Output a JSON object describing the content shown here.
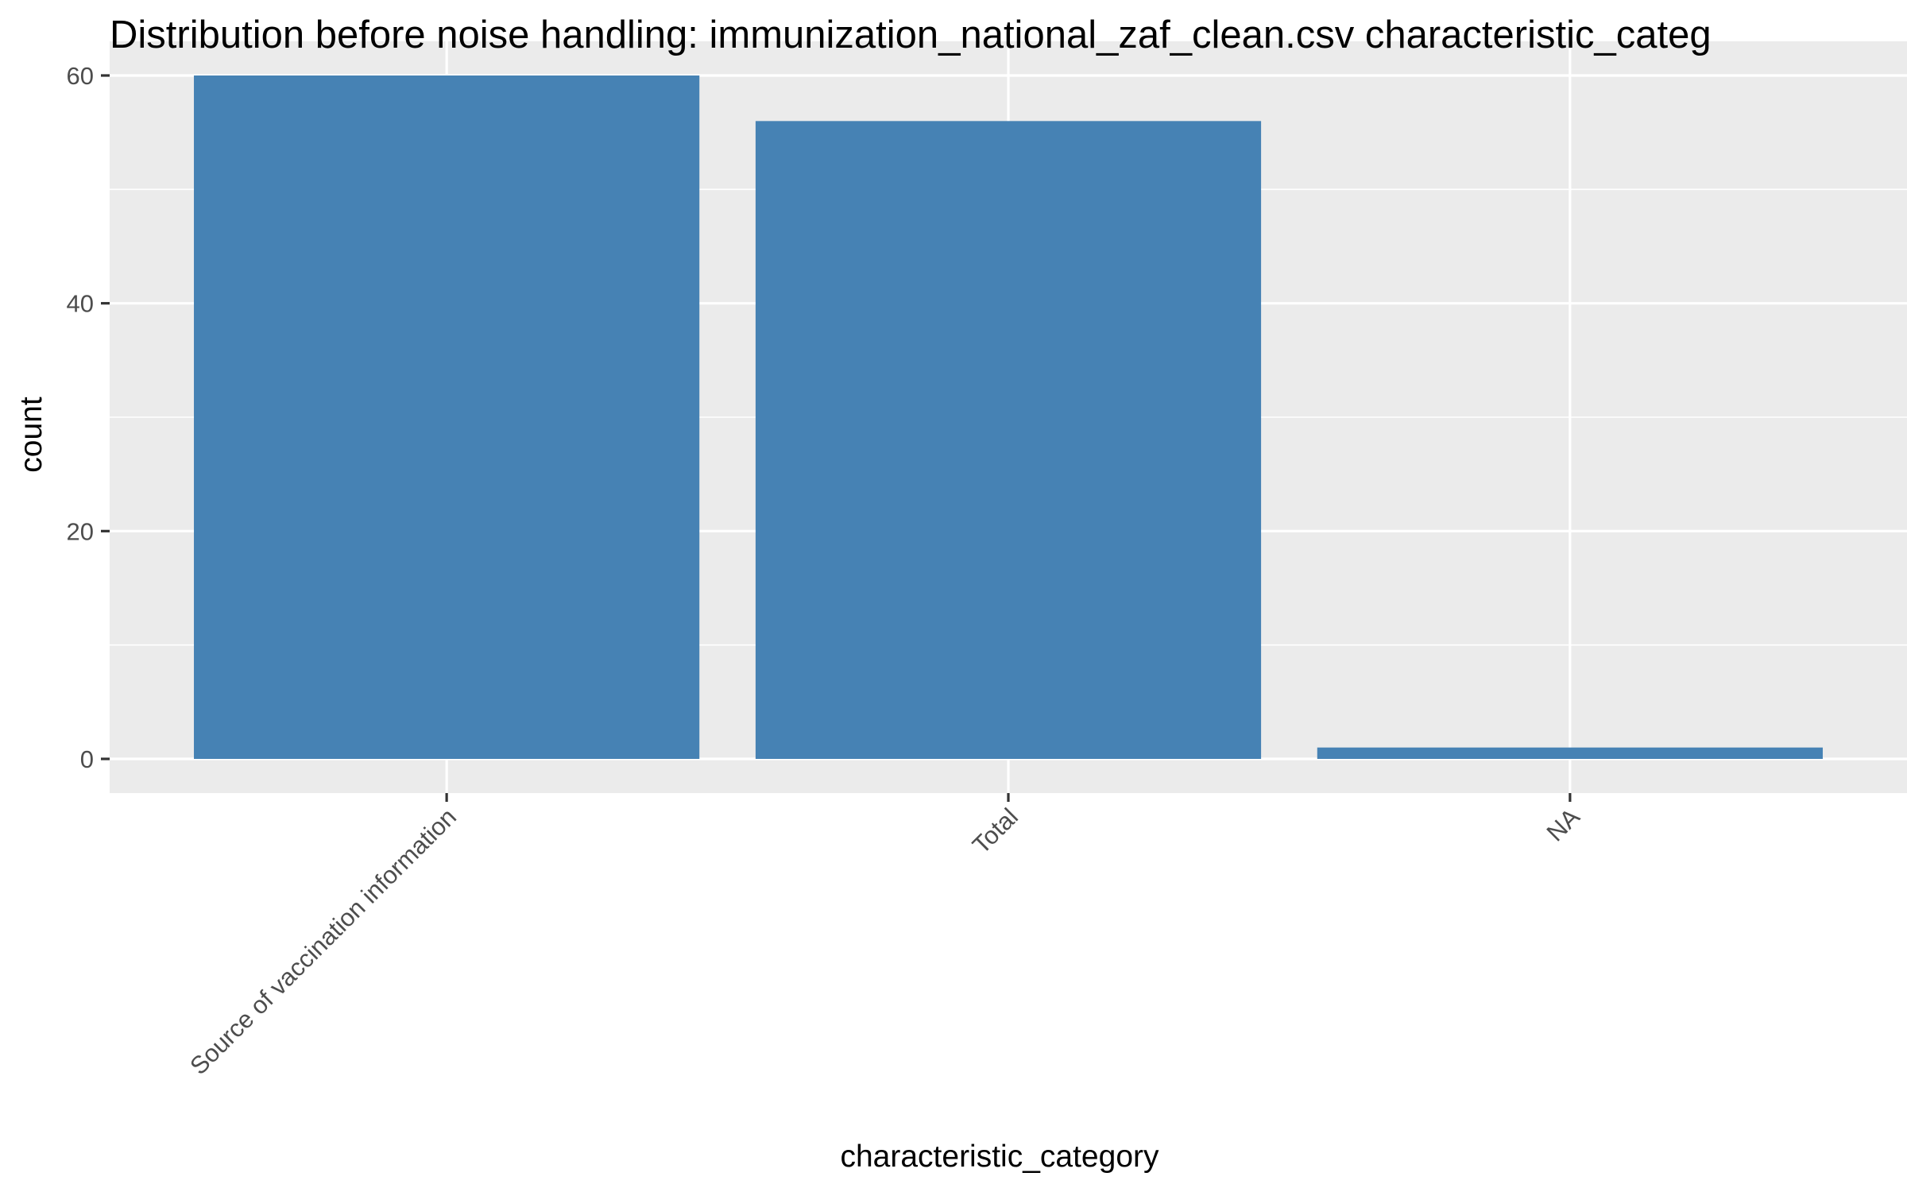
{
  "chart_data": {
    "type": "bar",
    "title": "Distribution before noise handling: immunization_national_zaf_clean.csv characteristic_categ",
    "xlabel": "characteristic_category",
    "ylabel": "count",
    "categories": [
      "Source of vaccination information",
      "Total",
      "NA"
    ],
    "values": [
      60,
      56,
      1
    ],
    "ylim": [
      -3,
      63
    ],
    "yticks": [
      0,
      20,
      40,
      60
    ],
    "grid": true,
    "colors": {
      "bar": "#4682B4",
      "panel": "#EBEBEB",
      "grid": "#FFFFFF"
    }
  }
}
